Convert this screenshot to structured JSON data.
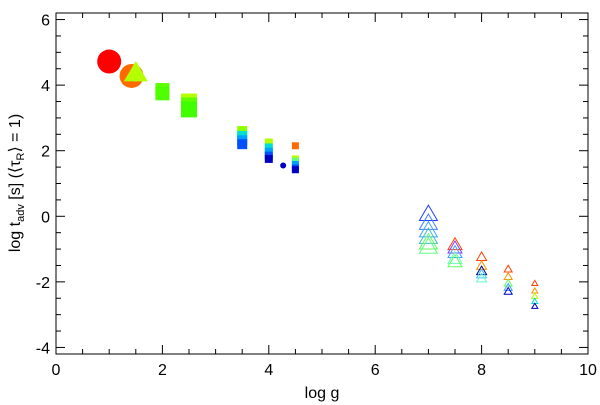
{
  "chart_data": {
    "type": "scatter",
    "xlabel": "log g",
    "ylabel": "log t_adv [s] (<τ_R> = 1)",
    "ylabel_parts": {
      "main_prefix": "log t",
      "sub1": "adv",
      "main_mid": " [s] (⟨τ",
      "sub2": "R",
      "main_suffix": "⟩ = 1)"
    },
    "xlim": [
      0,
      10
    ],
    "ylim": [
      -4.2,
      6.2
    ],
    "x_ticks": [
      "0",
      "2",
      "4",
      "6",
      "8",
      "10"
    ],
    "y_ticks": [
      "-4",
      "-2",
      "0",
      "2",
      "4",
      "6"
    ],
    "colors": {
      "red": "#ff0000",
      "orange": "#ff6a00",
      "yellow_green": "#b4ff00",
      "green": "#50ff00",
      "green_light": "#60ff80",
      "cyan": "#00e0d0",
      "sky": "#00a0ff",
      "blue": "#0050ff",
      "navy": "#0000c0"
    },
    "series": [
      {
        "marker": "circle-filled",
        "points": [
          {
            "x": 1.0,
            "y": 4.72,
            "size": 12,
            "color": "#ff0000"
          },
          {
            "x": 1.42,
            "y": 4.28,
            "size": 12,
            "color": "#ff6a00"
          },
          {
            "x": 4.27,
            "y": 1.55,
            "size": 3,
            "color": "#0000c0"
          }
        ]
      },
      {
        "marker": "triangle-filled",
        "points": [
          {
            "x": 1.5,
            "y": 4.35,
            "size": 12,
            "color": "#b4ff00"
          }
        ]
      },
      {
        "marker": "square-filled",
        "points": [
          {
            "x": 2.0,
            "y": 3.85,
            "size": 7,
            "color": "#60ff00"
          },
          {
            "x": 2.0,
            "y": 3.75,
            "size": 7,
            "color": "#50ff00"
          },
          {
            "x": 2.5,
            "y": 3.5,
            "size": 8,
            "color": "#b4ff00"
          },
          {
            "x": 2.5,
            "y": 3.38,
            "size": 8,
            "color": "#60ff00"
          },
          {
            "x": 2.5,
            "y": 3.26,
            "size": 8,
            "color": "#40ff00"
          },
          {
            "x": 3.5,
            "y": 2.6,
            "size": 5,
            "color": "#90ff00"
          },
          {
            "x": 3.5,
            "y": 2.45,
            "size": 5,
            "color": "#00e0d0"
          },
          {
            "x": 3.5,
            "y": 2.32,
            "size": 5,
            "color": "#00a0ff"
          },
          {
            "x": 3.5,
            "y": 2.2,
            "size": 5,
            "color": "#0050ff"
          },
          {
            "x": 4.0,
            "y": 2.25,
            "size": 4,
            "color": "#b4ff00"
          },
          {
            "x": 4.0,
            "y": 2.1,
            "size": 4,
            "color": "#00e0d0"
          },
          {
            "x": 4.0,
            "y": 1.97,
            "size": 4,
            "color": "#00a0ff"
          },
          {
            "x": 4.0,
            "y": 1.85,
            "size": 4,
            "color": "#0050ff"
          },
          {
            "x": 4.0,
            "y": 1.75,
            "size": 4,
            "color": "#0000c0"
          },
          {
            "x": 4.5,
            "y": 2.15,
            "size": 3.5,
            "color": "#ff6a00"
          },
          {
            "x": 4.5,
            "y": 1.75,
            "size": 3.5,
            "color": "#b4ff00"
          },
          {
            "x": 4.5,
            "y": 1.68,
            "size": 3.5,
            "color": "#60ff80"
          },
          {
            "x": 4.5,
            "y": 1.58,
            "size": 3.5,
            "color": "#00a0ff"
          },
          {
            "x": 4.5,
            "y": 1.47,
            "size": 3.5,
            "color": "#0050ff"
          },
          {
            "x": 4.5,
            "y": 1.42,
            "size": 3.5,
            "color": "#0000c0"
          }
        ]
      },
      {
        "marker": "triangle-open",
        "points": [
          {
            "x": 7.0,
            "y": 0.05,
            "size": 9,
            "color": "#2040ff"
          },
          {
            "x": 7.0,
            "y": -0.22,
            "size": 9,
            "color": "#4080ff"
          },
          {
            "x": 7.0,
            "y": -0.45,
            "size": 9,
            "color": "#40a0ff"
          },
          {
            "x": 7.0,
            "y": -0.65,
            "size": 9,
            "color": "#40c0c0"
          },
          {
            "x": 7.0,
            "y": -0.82,
            "size": 9,
            "color": "#60ff60"
          },
          {
            "x": 7.0,
            "y": -0.95,
            "size": 9,
            "color": "#60ff80"
          },
          {
            "x": 7.5,
            "y": -0.88,
            "size": 7,
            "color": "#ff4000"
          },
          {
            "x": 7.5,
            "y": -0.98,
            "size": 7,
            "color": "#8040ff"
          },
          {
            "x": 7.5,
            "y": -1.12,
            "size": 7,
            "color": "#40a0ff"
          },
          {
            "x": 7.5,
            "y": -1.3,
            "size": 7,
            "color": "#60ffc0"
          },
          {
            "x": 7.5,
            "y": -1.4,
            "size": 7,
            "color": "#60ff60"
          },
          {
            "x": 8.0,
            "y": -1.25,
            "size": 5,
            "color": "#ff4000"
          },
          {
            "x": 8.0,
            "y": -1.52,
            "size": 5,
            "color": "#ff9000"
          },
          {
            "x": 8.0,
            "y": -1.68,
            "size": 5,
            "color": "#000080"
          },
          {
            "x": 8.0,
            "y": -1.78,
            "size": 5,
            "color": "#40c0ff"
          },
          {
            "x": 8.0,
            "y": -1.9,
            "size": 5,
            "color": "#60ffc0"
          },
          {
            "x": 8.5,
            "y": -1.62,
            "size": 4,
            "color": "#ff4000"
          },
          {
            "x": 8.5,
            "y": -1.85,
            "size": 4,
            "color": "#ff9000"
          },
          {
            "x": 8.5,
            "y": -2.05,
            "size": 4,
            "color": "#60ff60"
          },
          {
            "x": 8.5,
            "y": -2.18,
            "size": 4,
            "color": "#40a0ff"
          },
          {
            "x": 8.5,
            "y": -2.3,
            "size": 4,
            "color": "#0000c0"
          },
          {
            "x": 9.0,
            "y": -2.05,
            "size": 3,
            "color": "#ff4000"
          },
          {
            "x": 9.0,
            "y": -2.28,
            "size": 3,
            "color": "#ff9000"
          },
          {
            "x": 9.0,
            "y": -2.45,
            "size": 3,
            "color": "#b4ff00"
          },
          {
            "x": 9.0,
            "y": -2.6,
            "size": 3,
            "color": "#00e0d0"
          },
          {
            "x": 9.0,
            "y": -2.75,
            "size": 3,
            "color": "#0000c0"
          }
        ]
      }
    ]
  }
}
